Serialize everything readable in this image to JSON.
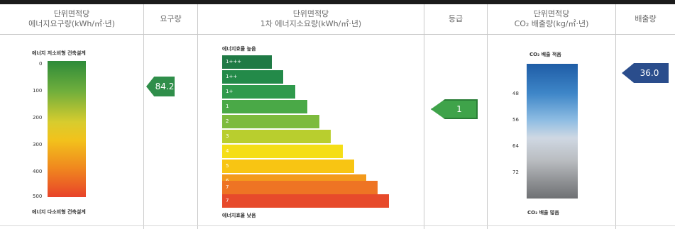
{
  "headers": {
    "col1_line1": "단위면적당",
    "col1_line2": "에너지요구량(kWh/㎡·년)",
    "col2": "요구량",
    "col3_line1": "단위면적당",
    "col3_line2": "1차 에너지소요량(kWh/㎡·년)",
    "col4": "등급",
    "col5_line1": "단위면적당",
    "col5_line2": "CO₂ 배출량(kg/㎡·년)",
    "col6": "배출량"
  },
  "requirement_scale": {
    "top_label": "에너지 저소비형 건축설계",
    "bottom_label": "에너지 다소비형 건축설계",
    "ticks": [
      "0",
      "100",
      "200",
      "300",
      "400",
      "500"
    ]
  },
  "requirement_value": "84.2",
  "efficiency": {
    "top_label": "에너지효율 높음",
    "bottom_label": "에너지효율 낮음",
    "bars": [
      {
        "label": "1+++",
        "color": "#1f7a45"
      },
      {
        "label": "1++",
        "color": "#238a49"
      },
      {
        "label": "1+",
        "color": "#2f9a4c"
      },
      {
        "label": "1",
        "color": "#4aa947"
      },
      {
        "label": "2",
        "color": "#7dbb3d"
      },
      {
        "label": "3",
        "color": "#b9ce2e"
      },
      {
        "label": "4",
        "color": "#f5de16"
      },
      {
        "label": "5",
        "color": "#f8c513"
      },
      {
        "label": "6",
        "color": "#f39a1c"
      },
      {
        "label": "7",
        "color": "#ee7424"
      },
      {
        "label": "7",
        "color": "#e74a2b"
      }
    ]
  },
  "grade_value": "1",
  "co2_scale": {
    "top_label": "CO₂ 배출 적음",
    "bottom_label": "CO₂ 배출 많음",
    "ticks": [
      "48",
      "56",
      "64",
      "72"
    ]
  },
  "emission_value": "36.0",
  "colors": {
    "green_arrow": "#2f8e4a",
    "blue_arrow": "#2a4d8c"
  }
}
